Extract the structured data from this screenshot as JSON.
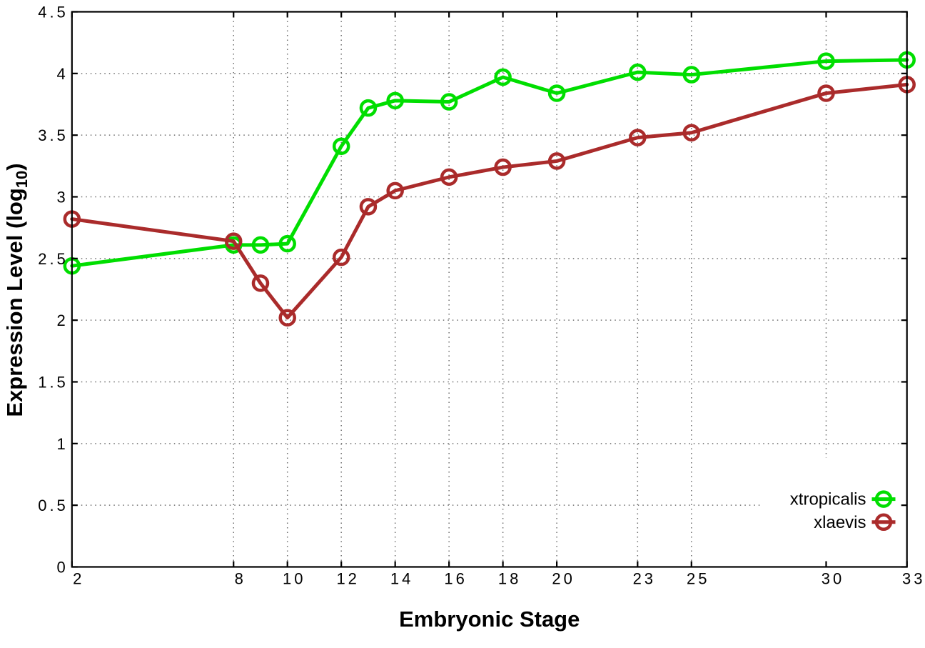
{
  "chart_data": {
    "type": "line",
    "title": "",
    "xlabel": "Embryonic Stage",
    "ylabel_parts": {
      "main": "Expression Level (log",
      "sub": "10",
      "close": ")"
    },
    "xlim": [
      2,
      33
    ],
    "ylim": [
      0,
      4.5
    ],
    "x_ticks": {
      "values": [
        2,
        8,
        10,
        12,
        14,
        16,
        18,
        20,
        23,
        25,
        30,
        33
      ],
      "labels": [
        "2",
        "8",
        "10",
        "12",
        "14",
        "16",
        "18",
        "20",
        "23",
        "25",
        "30",
        "33"
      ]
    },
    "y_ticks": {
      "values": [
        0,
        0.5,
        1,
        1.5,
        2,
        2.5,
        3,
        3.5,
        4,
        4.5
      ],
      "labels": [
        "0",
        "0.5",
        "1",
        "1.5",
        "2",
        "2.5",
        "3",
        "3.5",
        "4",
        "4.5"
      ]
    },
    "grid": {
      "shown": true,
      "style": "dotted",
      "color": "#6e6e6e"
    },
    "x": [
      2,
      8,
      9,
      10,
      12,
      13,
      14,
      16,
      18,
      20,
      23,
      25,
      30,
      33
    ],
    "series": [
      {
        "name": "xtropicalis",
        "color": "#00de00",
        "marker": "open-circle",
        "values": [
          2.44,
          2.61,
          2.61,
          2.62,
          3.41,
          3.72,
          3.78,
          3.77,
          3.97,
          3.84,
          4.01,
          3.99,
          4.1,
          4.11
        ]
      },
      {
        "name": "xlaevis",
        "color": "#aa2b2b",
        "marker": "open-circle",
        "values": [
          2.82,
          2.64,
          2.3,
          2.02,
          2.51,
          2.92,
          3.05,
          3.16,
          3.24,
          3.29,
          3.48,
          3.52,
          3.84,
          3.91
        ]
      }
    ],
    "legend": {
      "position": "bottom-right",
      "entries": [
        "xtropicalis",
        "xlaevis"
      ]
    },
    "axis_color": "#000000",
    "background_color": "#ffffff"
  }
}
